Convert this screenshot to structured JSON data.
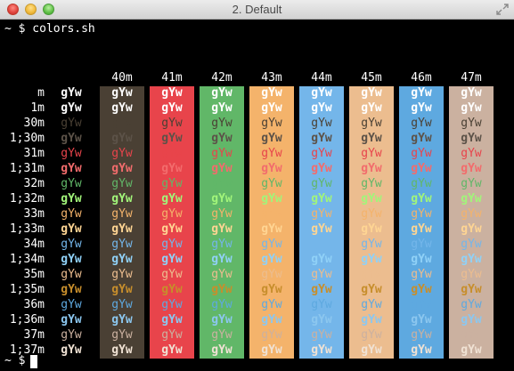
{
  "window": {
    "title": "2. Default"
  },
  "prompt1": "~ $ colors.sh",
  "prompt2": "~ $",
  "sample_text": "gYw",
  "headers": [
    "40m",
    "41m",
    "42m",
    "43m",
    "44m",
    "45m",
    "46m",
    "47m"
  ],
  "bg_colors": [
    "#4a4034",
    "#e8444b",
    "#61b768",
    "#f4b36b",
    "#74b6ea",
    "#ecbd8f",
    "#5ea9e0",
    "#cbb1a0"
  ],
  "rows": [
    {
      "label": "m",
      "fg": "#ffffff",
      "bold": true
    },
    {
      "label": "1m",
      "fg": "#ffffff",
      "bold": true
    },
    {
      "label": "30m",
      "fg": "#4a4034",
      "bold": false
    },
    {
      "label": "1;30m",
      "fg": "#5c5248",
      "bold": true
    },
    {
      "label": "31m",
      "fg": "#e8444b",
      "bold": false
    },
    {
      "label": "1;31m",
      "fg": "#f26c6c",
      "bold": true
    },
    {
      "label": "32m",
      "fg": "#61b768",
      "bold": false
    },
    {
      "label": "1;32m",
      "fg": "#a2f57a",
      "bold": true
    },
    {
      "label": "33m",
      "fg": "#f4b36b",
      "bold": false
    },
    {
      "label": "1;33m",
      "fg": "#ffd593",
      "bold": true
    },
    {
      "label": "34m",
      "fg": "#74b6ea",
      "bold": false
    },
    {
      "label": "1;34m",
      "fg": "#90d1f7",
      "bold": true
    },
    {
      "label": "35m",
      "fg": "#ecbd8f",
      "bold": false
    },
    {
      "label": "1;35m",
      "fg": "#c78e2c",
      "bold": true
    },
    {
      "label": "36m",
      "fg": "#5ea9e0",
      "bold": false
    },
    {
      "label": "1;36m",
      "fg": "#8cc7ef",
      "bold": true
    },
    {
      "label": "37m",
      "fg": "#cbb1a0",
      "bold": false
    },
    {
      "label": "1;37m",
      "fg": "#f0e2d4",
      "bold": true
    }
  ]
}
